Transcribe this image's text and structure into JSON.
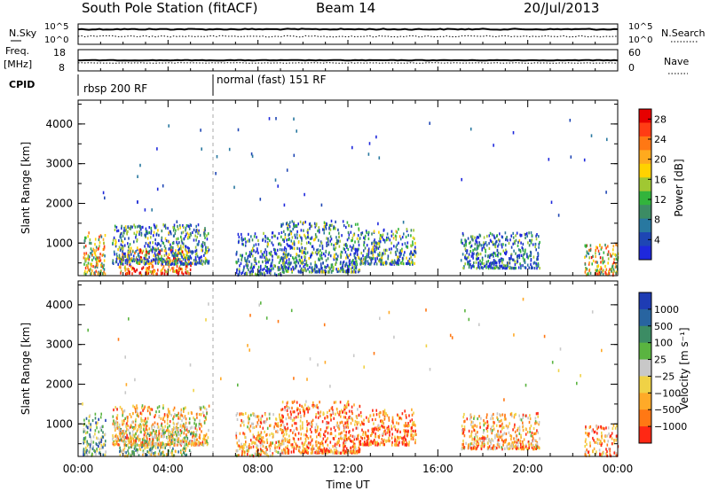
{
  "header": {
    "title": "South Pole Station (fitACF)",
    "beam": "Beam 14",
    "date": "20/Jul/2013"
  },
  "top_panels": {
    "nsky_label": "N.Sky",
    "nsky_ticks": [
      "10^5",
      "10^0"
    ],
    "nsearch_label": "N.Search",
    "nsearch_ticks": [
      "10^5",
      "10^0"
    ],
    "freq_label_1": "Freq.",
    "freq_label_2": "[MHz]",
    "freq_ticks": [
      "18",
      "8"
    ],
    "nave_label": "Nave",
    "nave_ticks": [
      "60",
      "0"
    ],
    "cpid_label": "CPID",
    "cpid_segments": [
      "rbsp 200 RF",
      "normal (fast) 151 RF"
    ]
  },
  "x_axis": {
    "label": "Time UT",
    "ticks": [
      "00:00",
      "04:00",
      "08:00",
      "12:00",
      "16:00",
      "20:00",
      "00:00"
    ]
  },
  "colors": {
    "power": [
      "#1e28dc",
      "#1e46b4",
      "#2878a0",
      "#3c8c64",
      "#32b43c",
      "#a0c832",
      "#ffd200",
      "#ffaa1e",
      "#ff7814",
      "#ff3c14",
      "#e60000"
    ],
    "velocity": [
      "#1e3cb4",
      "#2864a0",
      "#3c8c64",
      "#5ab440",
      "#c8c8c8",
      "#f0d246",
      "#ffaa28",
      "#ff7814",
      "#ff2814"
    ]
  },
  "chart_data": [
    {
      "type": "heatmap",
      "name": "power",
      "ylabel": "Slant Range [km]",
      "xlabel": "",
      "y_ticks": [
        "1000",
        "2000",
        "3000",
        "4000"
      ],
      "ylim_km": [
        180,
        4600
      ],
      "xlim_hours": [
        0,
        24
      ],
      "colorbar": {
        "label": "Power [dB]",
        "ticks": [
          "4",
          "8",
          "12",
          "16",
          "20",
          "24",
          "28"
        ],
        "range": [
          0,
          30
        ]
      },
      "clusters": [
        {
          "t0": 0.2,
          "t1": 1.2,
          "r0": 180,
          "r1": 1300,
          "intensity": 0.55
        },
        {
          "t0": 1.8,
          "t1": 5.0,
          "r0": 180,
          "r1": 900,
          "intensity": 0.85
        },
        {
          "t0": 1.5,
          "t1": 5.8,
          "r0": 500,
          "r1": 1500,
          "intensity": 0.25
        },
        {
          "t0": 7.0,
          "t1": 9.0,
          "r0": 200,
          "r1": 1300,
          "intensity": 0.2
        },
        {
          "t0": 9.0,
          "t1": 12.5,
          "r0": 300,
          "r1": 1600,
          "intensity": 0.25
        },
        {
          "t0": 12.5,
          "t1": 15.0,
          "r0": 500,
          "r1": 1400,
          "intensity": 0.3
        },
        {
          "t0": 17.0,
          "t1": 20.5,
          "r0": 400,
          "r1": 1300,
          "intensity": 0.2
        },
        {
          "t0": 22.5,
          "t1": 24.0,
          "r0": 180,
          "r1": 1000,
          "intensity": 0.6
        }
      ]
    },
    {
      "type": "heatmap",
      "name": "velocity",
      "ylabel": "Slant Range [km]",
      "xlabel": "Time UT",
      "y_ticks": [
        "1000",
        "2000",
        "3000",
        "4000"
      ],
      "ylim_km": [
        180,
        4600
      ],
      "xlim_hours": [
        0,
        24
      ],
      "colorbar": {
        "label": "Velocity [m s⁻¹]",
        "ticks": [
          "1000",
          "500",
          "100",
          "25",
          "−25",
          "−100",
          "−500",
          "−1000"
        ]
      },
      "clusters": [
        {
          "t0": 0.2,
          "t1": 1.2,
          "r0": 180,
          "r1": 1300,
          "bias": 0.35
        },
        {
          "t0": 1.8,
          "t1": 5.0,
          "r0": 180,
          "r1": 1000,
          "bias": 0.45
        },
        {
          "t0": 1.5,
          "t1": 5.8,
          "r0": 500,
          "r1": 1500,
          "bias": 0.65
        },
        {
          "t0": 7.0,
          "t1": 9.0,
          "r0": 200,
          "r1": 1300,
          "bias": 0.7
        },
        {
          "t0": 9.0,
          "t1": 12.5,
          "r0": 300,
          "r1": 1600,
          "bias": 0.8
        },
        {
          "t0": 12.5,
          "t1": 15.0,
          "r0": 500,
          "r1": 1400,
          "bias": 0.85
        },
        {
          "t0": 17.0,
          "t1": 20.5,
          "r0": 400,
          "r1": 1300,
          "bias": 0.7
        },
        {
          "t0": 22.5,
          "t1": 24.0,
          "r0": 180,
          "r1": 1000,
          "bias": 0.75
        }
      ]
    }
  ]
}
